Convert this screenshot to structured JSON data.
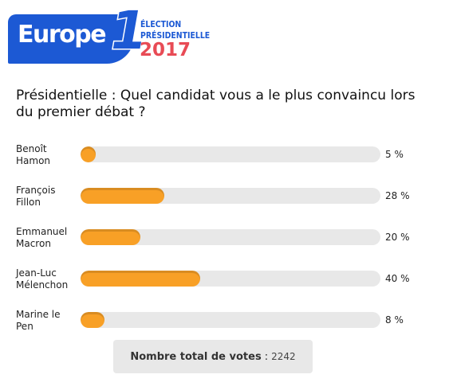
{
  "logo": {
    "brand": "Europe",
    "digit": "1",
    "line1": "ÉLECTION",
    "line2": "PRÉSIDENTIELLE",
    "year": "2017"
  },
  "poll": {
    "question": "Présidentielle : Quel  candidat vous a le plus convaincu lors du premier débat ?",
    "candidates": [
      {
        "name_line1": "Benoît",
        "name_line2": "Hamon",
        "percent": 5,
        "percent_label": "5 %"
      },
      {
        "name_line1": "François",
        "name_line2": "Fillon",
        "percent": 28,
        "percent_label": "28 %"
      },
      {
        "name_line1": "Emmanuel",
        "name_line2": "Macron",
        "percent": 20,
        "percent_label": "20 %"
      },
      {
        "name_line1": "Jean-Luc",
        "name_line2": "Mélenchon",
        "percent": 40,
        "percent_label": "40 %"
      },
      {
        "name_line1": "Marine le",
        "name_line2": "Pen",
        "percent": 8,
        "percent_label": "8 %"
      }
    ],
    "total_label": "Nombre total de votes",
    "total_sep": ":",
    "total_value": "2242"
  },
  "colors": {
    "brand_blue": "#1c59d4",
    "year_red": "#e84b55",
    "bar_fill": "#f8a026",
    "bar_track": "#e8e8e8"
  }
}
